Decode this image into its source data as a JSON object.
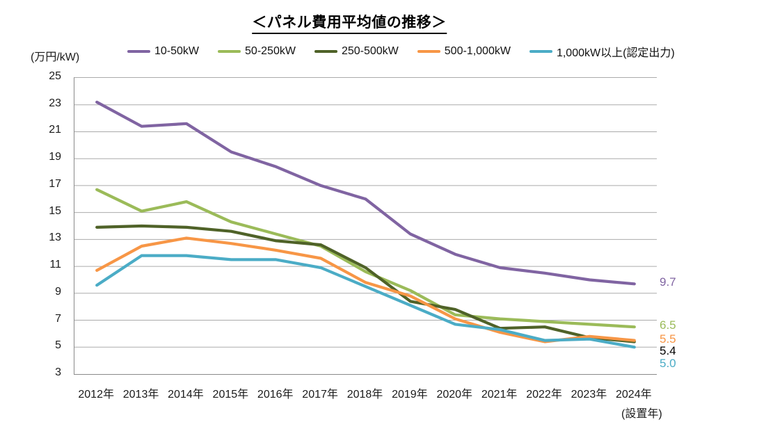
{
  "title": "＜パネル費用平均値の推移＞",
  "y_axis_unit": "(万円/kW)",
  "x_axis_note": "(設置年)",
  "colors": {
    "grid": "#ababab",
    "axis": "#8a8a8a"
  },
  "chart_data": {
    "type": "line",
    "title": "＜パネル費用平均値の推移＞",
    "ylabel": "(万円/kW)",
    "xlabel": "(設置年)",
    "ylim": [
      3,
      25
    ],
    "y_ticks": [
      25,
      23,
      21,
      19,
      17,
      15,
      13,
      11,
      9,
      7,
      5,
      3
    ],
    "grid": true,
    "legend_position": "top",
    "categories": [
      "2012年",
      "2013年",
      "2014年",
      "2015年",
      "2016年",
      "2017年",
      "2018年",
      "2019年",
      "2020年",
      "2021年",
      "2022年",
      "2023年",
      "2024年"
    ],
    "series": [
      {
        "name": "10-50kW",
        "color": "#8064A2",
        "values": [
          23.2,
          21.4,
          21.6,
          19.5,
          18.4,
          17.0,
          16.0,
          13.4,
          11.9,
          10.9,
          10.5,
          10.0,
          9.7
        ],
        "end_label": "9.7",
        "end_label_color": "#8064A2"
      },
      {
        "name": "50-250kW",
        "color": "#9BBB59",
        "values": [
          16.7,
          15.1,
          15.8,
          14.3,
          13.4,
          12.5,
          10.6,
          9.2,
          7.4,
          7.1,
          6.9,
          6.7,
          6.5
        ],
        "end_label": "6.5",
        "end_label_color": "#9BBB59"
      },
      {
        "name": "250-500kW",
        "color": "#4F6228",
        "values": [
          13.9,
          14.0,
          13.9,
          13.6,
          12.9,
          12.6,
          10.9,
          8.4,
          7.8,
          6.4,
          6.5,
          5.7,
          5.4
        ],
        "end_label": "5.4",
        "end_label_color": "#000000"
      },
      {
        "name": "500-1,000kW",
        "color": "#F79646",
        "values": [
          10.7,
          12.5,
          13.1,
          12.7,
          12.2,
          11.6,
          9.8,
          8.8,
          7.1,
          6.1,
          5.4,
          5.8,
          5.5
        ],
        "end_label": "5.5",
        "end_label_color": "#F79646"
      },
      {
        "name": "1,000kW以上(認定出力)",
        "color": "#4BACC6",
        "values": [
          9.6,
          11.8,
          11.8,
          11.5,
          11.5,
          10.9,
          9.5,
          8.1,
          6.7,
          6.3,
          5.5,
          5.6,
          5.0
        ],
        "end_label": "5.0",
        "end_label_color": "#4BACC6"
      }
    ]
  }
}
